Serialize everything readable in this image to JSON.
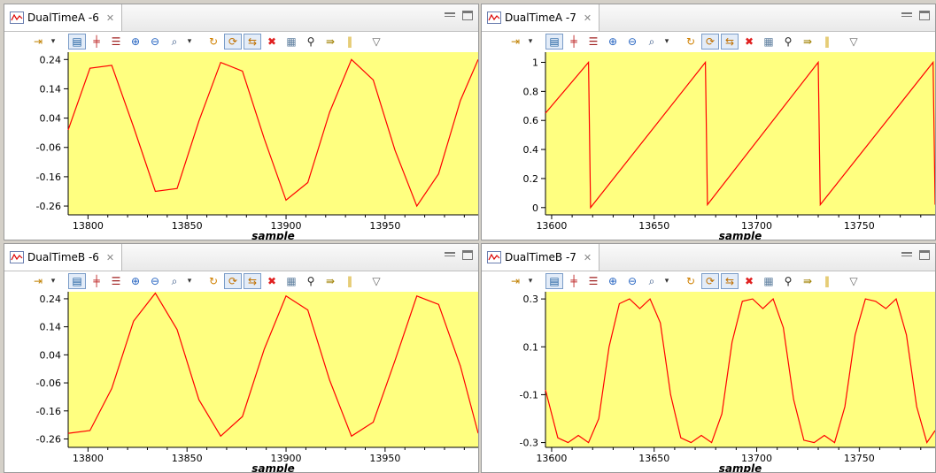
{
  "colors": {
    "plot_bg": "#ffff80",
    "line": "#ff0000"
  },
  "toolbar_icons": [
    "marker-icon",
    "dropdown-arrow-icon",
    "layout-icon",
    "center-icon",
    "stack-icon",
    "zoom-in-icon",
    "zoom-out-icon",
    "zoom-fit-icon",
    "dropdown-arrow-icon",
    "refresh-icon",
    "hold-icon",
    "sync-icon",
    "delete-icon",
    "properties-icon",
    "find-icon",
    "export-icon",
    "pause-icon",
    "view-menu-icon"
  ],
  "panels": {
    "a6": {
      "tab_title": "DualTimeA -6",
      "xlabel": "sample"
    },
    "a7": {
      "tab_title": "DualTimeA -7",
      "xlabel": "sample"
    },
    "b6": {
      "tab_title": "DualTimeB -6",
      "xlabel": "sample"
    },
    "b7": {
      "tab_title": "DualTimeB -7",
      "xlabel": "sample"
    }
  },
  "chart_data": [
    {
      "type": "line",
      "panel": "a6",
      "xlabel": "sample",
      "xlim": [
        13790,
        13997
      ],
      "ylim": [
        -0.29,
        0.265
      ],
      "xticks": [
        "13800",
        "13850",
        "13900",
        "13950"
      ],
      "yticks": [
        "0.24",
        "0.14",
        "0.04",
        "-0.06",
        "-0.16",
        "-0.26"
      ],
      "series": [
        {
          "x": [
            13790,
            13801,
            13812,
            13823,
            13834,
            13845,
            13856,
            13867,
            13878,
            13889,
            13900,
            13911,
            13922,
            13933,
            13944,
            13955,
            13966,
            13977,
            13988,
            13997
          ],
          "values": [
            0.0,
            0.21,
            0.22,
            0.01,
            -0.21,
            -0.2,
            0.03,
            0.23,
            0.2,
            -0.03,
            -0.24,
            -0.18,
            0.06,
            0.24,
            0.17,
            -0.07,
            -0.26,
            -0.15,
            0.1,
            0.24
          ]
        }
      ]
    },
    {
      "type": "line",
      "panel": "a7",
      "xlabel": "sample",
      "xlim": [
        13597,
        13787
      ],
      "ylim": [
        -0.05,
        1.07
      ],
      "xticks": [
        "13600",
        "13650",
        "13700",
        "13750"
      ],
      "yticks": [
        "1",
        "0.8",
        "0.6",
        "0.4",
        "0.2",
        "0"
      ],
      "series": [
        {
          "x": [
            13597,
            13618,
            13619,
            13675,
            13676,
            13730,
            13731,
            13786,
            13787
          ],
          "values": [
            0.65,
            1.0,
            0.0,
            1.0,
            0.02,
            1.0,
            0.02,
            1.0,
            0.02
          ]
        }
      ]
    },
    {
      "type": "line",
      "panel": "b6",
      "xlabel": "sample",
      "xlim": [
        13790,
        13997
      ],
      "ylim": [
        -0.29,
        0.265
      ],
      "xticks": [
        "13800",
        "13850",
        "13900",
        "13950"
      ],
      "yticks": [
        "0.24",
        "0.14",
        "0.04",
        "-0.06",
        "-0.16",
        "-0.26"
      ],
      "series": [
        {
          "x": [
            13790,
            13801,
            13812,
            13823,
            13834,
            13845,
            13856,
            13867,
            13878,
            13889,
            13900,
            13911,
            13922,
            13933,
            13944,
            13955,
            13966,
            13977,
            13988,
            13997
          ],
          "values": [
            -0.24,
            -0.23,
            -0.08,
            0.16,
            0.26,
            0.13,
            -0.12,
            -0.25,
            -0.18,
            0.06,
            0.25,
            0.2,
            -0.05,
            -0.25,
            -0.2,
            0.02,
            0.25,
            0.22,
            0.0,
            -0.24
          ]
        }
      ]
    },
    {
      "type": "line",
      "panel": "b7",
      "xlabel": "sample",
      "xlim": [
        13597,
        13787
      ],
      "ylim": [
        -0.32,
        0.33
      ],
      "xticks": [
        "13600",
        "13650",
        "13700",
        "13750"
      ],
      "yticks": [
        "0.3",
        "0.1",
        "-0.1",
        "-0.3"
      ],
      "series": [
        {
          "x": [
            13597,
            13603,
            13608,
            13613,
            13618,
            13623,
            13628,
            13633,
            13638,
            13643,
            13648,
            13653,
            13658,
            13663,
            13668,
            13673,
            13678,
            13683,
            13688,
            13693,
            13698,
            13703,
            13708,
            13713,
            13718,
            13723,
            13728,
            13733,
            13738,
            13743,
            13748,
            13753,
            13758,
            13763,
            13768,
            13773,
            13778,
            13783,
            13787
          ],
          "values": [
            -0.08,
            -0.28,
            -0.3,
            -0.27,
            -0.3,
            -0.2,
            0.1,
            0.28,
            0.3,
            0.26,
            0.3,
            0.2,
            -0.1,
            -0.28,
            -0.3,
            -0.27,
            -0.3,
            -0.18,
            0.12,
            0.29,
            0.3,
            0.26,
            0.3,
            0.18,
            -0.12,
            -0.29,
            -0.3,
            -0.27,
            -0.3,
            -0.15,
            0.15,
            0.3,
            0.29,
            0.26,
            0.3,
            0.15,
            -0.15,
            -0.3,
            -0.25
          ]
        }
      ]
    }
  ]
}
